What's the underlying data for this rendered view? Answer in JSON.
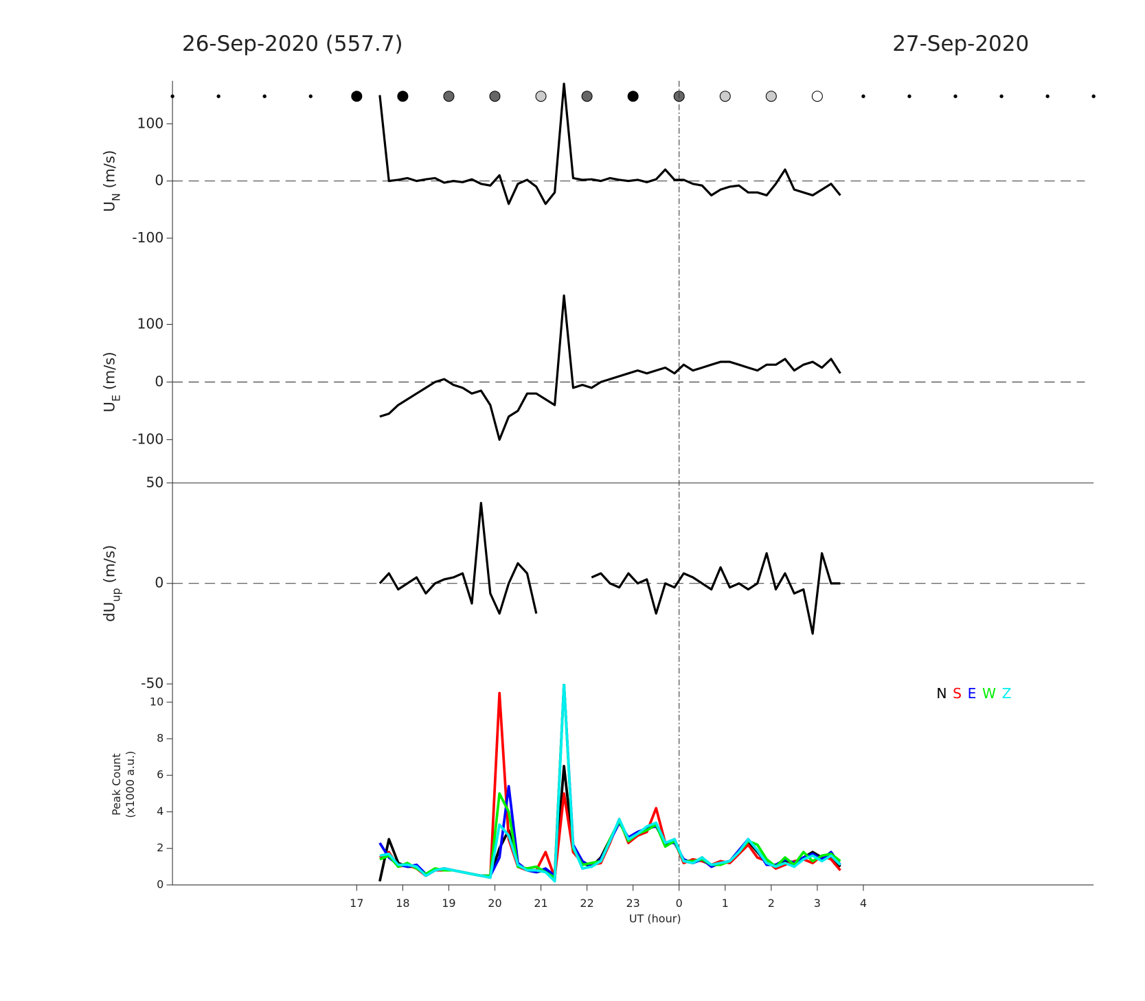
{
  "header": {
    "left_title": "26-Sep-2020 (557.7)",
    "right_title": "27-Sep-2020"
  },
  "dots": {
    "x": [
      13,
      14,
      15,
      16,
      17,
      18,
      19,
      20,
      21,
      22,
      23,
      24,
      25,
      26,
      27,
      28,
      29,
      30,
      31,
      32,
      33
    ],
    "colors": [
      "#000",
      "#000",
      "#000",
      "#000",
      "#000",
      "#000",
      "#666",
      "#666",
      "#ccc",
      "#666",
      "#000",
      "#666",
      "#ccc",
      "#ccc",
      "#fff",
      "#000",
      "#000",
      "#000",
      "#000",
      "#000",
      "#000"
    ],
    "sizes": [
      "small",
      "small",
      "small",
      "small",
      "large",
      "large",
      "large",
      "large",
      "large",
      "large",
      "large",
      "large",
      "large",
      "large",
      "large",
      "small",
      "small",
      "small",
      "small",
      "small",
      "small"
    ]
  },
  "vline": 24,
  "chart_data": [
    {
      "type": "line",
      "ylabel": {
        "main": "U",
        "sub": "N",
        "unit": " (m/s)"
      },
      "ylim": [
        -175,
        175
      ],
      "yticks": [
        -100,
        0,
        100
      ],
      "xlim": [
        13,
        33
      ],
      "zero_line": true,
      "x": [
        17.5,
        17.7,
        17.9,
        18.1,
        18.3,
        18.5,
        18.7,
        18.9,
        19.1,
        19.3,
        19.5,
        19.7,
        19.9,
        20.1,
        20.3,
        20.5,
        20.7,
        20.9,
        21.1,
        21.3,
        21.5,
        21.7,
        21.9,
        22.1,
        22.3,
        22.5,
        22.7,
        22.9,
        23.1,
        23.3,
        23.5,
        23.7,
        23.9,
        24.1,
        24.3,
        24.5,
        24.7,
        24.9,
        25.1,
        25.3,
        25.5,
        25.7,
        25.9,
        26.1,
        26.3,
        26.5,
        26.7,
        26.9,
        27.1,
        27.3,
        27.5
      ],
      "series": [
        {
          "color": "#000",
          "values": [
            150,
            0,
            2,
            5,
            0,
            3,
            5,
            -3,
            0,
            -2,
            3,
            -5,
            -8,
            10,
            -40,
            -5,
            2,
            -10,
            -40,
            -20,
            170,
            5,
            2,
            3,
            0,
            5,
            2,
            0,
            2,
            -2,
            3,
            20,
            2,
            2,
            -5,
            -8,
            -25,
            -15,
            -10,
            -8,
            -20,
            -20,
            -25,
            -5,
            20,
            -15,
            -20,
            -25,
            -15,
            -5,
            -25
          ]
        }
      ]
    },
    {
      "type": "line",
      "ylabel": {
        "main": "U",
        "sub": "E",
        "unit": " (m/s)"
      },
      "ylim": [
        -175,
        175
      ],
      "yticks": [
        -100,
        0,
        100
      ],
      "xlim": [
        13,
        33
      ],
      "zero_line": true,
      "x": [
        17.5,
        17.7,
        17.9,
        18.1,
        18.3,
        18.5,
        18.7,
        18.9,
        19.1,
        19.3,
        19.5,
        19.7,
        19.9,
        20.1,
        20.3,
        20.5,
        20.7,
        20.9,
        21.1,
        21.3,
        21.5,
        21.7,
        21.9,
        22.1,
        22.3,
        22.5,
        22.7,
        22.9,
        23.1,
        23.3,
        23.5,
        23.7,
        23.9,
        24.1,
        24.3,
        24.5,
        24.7,
        24.9,
        25.1,
        25.3,
        25.5,
        25.7,
        25.9,
        26.1,
        26.3,
        26.5,
        26.7,
        26.9,
        27.1,
        27.3,
        27.5
      ],
      "series": [
        {
          "color": "#000",
          "values": [
            -60,
            -55,
            -40,
            -30,
            -20,
            -10,
            0,
            5,
            -5,
            -10,
            -20,
            -15,
            -40,
            -100,
            -60,
            -50,
            -20,
            -20,
            -30,
            -40,
            150,
            -10,
            -5,
            -10,
            0,
            5,
            10,
            15,
            20,
            15,
            20,
            25,
            15,
            30,
            20,
            25,
            30,
            35,
            35,
            30,
            25,
            20,
            30,
            30,
            40,
            20,
            30,
            35,
            25,
            40,
            15
          ]
        }
      ]
    },
    {
      "type": "line",
      "ylabel": {
        "main": "dU",
        "sub": "up",
        "unit": " (m/s)"
      },
      "ylim": [
        -50,
        50
      ],
      "yticks": [
        -50,
        0,
        50
      ],
      "xlim": [
        13,
        33
      ],
      "zero_line": true,
      "x": [
        17.5,
        17.7,
        17.9,
        18.1,
        18.3,
        18.5,
        18.7,
        18.9,
        19.1,
        19.3,
        19.5,
        19.7,
        19.9,
        20.1,
        20.3,
        20.5,
        20.7,
        20.9,
        21.1,
        21.3,
        21.5,
        21.7,
        21.9,
        22.1,
        22.3,
        22.5,
        22.7,
        22.9,
        23.1,
        23.3,
        23.5,
        23.7,
        23.9,
        24.1,
        24.3,
        24.5,
        24.7,
        24.9,
        25.1,
        25.3,
        25.5,
        25.7,
        25.9,
        26.1,
        26.3,
        26.5,
        26.7,
        26.9,
        27.1,
        27.3,
        27.5
      ],
      "series": [
        {
          "color": "#000",
          "values": [
            0,
            5,
            -3,
            0,
            3,
            -5,
            0,
            2,
            3,
            5,
            -10,
            40,
            -5,
            -15,
            0,
            10,
            5,
            -15,
            null,
            null,
            null,
            null,
            null,
            3,
            5,
            0,
            -2,
            5,
            0,
            2,
            -15,
            0,
            -2,
            5,
            3,
            0,
            -3,
            8,
            -2,
            0,
            -3,
            0,
            15,
            -3,
            5,
            -5,
            -3,
            -25,
            15,
            0,
            0
          ]
        }
      ]
    },
    {
      "type": "line",
      "ylabel": {
        "main": "Peak Count",
        "unit": "(x1000 a.u.)"
      },
      "ylim": [
        0,
        11
      ],
      "yticks": [
        0,
        2,
        4,
        6,
        8,
        10
      ],
      "xlim": [
        13,
        33
      ],
      "xticks": [
        17,
        18,
        19,
        20,
        21,
        22,
        23,
        {
          "value": 24,
          "label": "0"
        },
        {
          "value": 25,
          "label": "1"
        },
        {
          "value": 26,
          "label": "2"
        },
        {
          "value": 27,
          "label": "3"
        },
        {
          "value": 28,
          "label": "4"
        }
      ],
      "xlabel": "UT (hour)",
      "legend": "top-right",
      "x": [
        17.5,
        17.7,
        17.9,
        18.1,
        18.3,
        18.5,
        18.7,
        18.9,
        19.1,
        19.3,
        19.5,
        19.7,
        19.9,
        20.1,
        20.3,
        20.5,
        20.7,
        20.9,
        21.1,
        21.3,
        21.5,
        21.7,
        21.9,
        22.1,
        22.3,
        22.5,
        22.7,
        22.9,
        23.1,
        23.3,
        23.5,
        23.7,
        23.9,
        24.1,
        24.3,
        24.5,
        24.7,
        24.9,
        25.1,
        25.3,
        25.5,
        25.7,
        25.9,
        26.1,
        26.3,
        26.5,
        26.7,
        26.9,
        27.1,
        27.3,
        27.5
      ],
      "series": [
        {
          "name": "N",
          "color": "#000000",
          "values": [
            0.2,
            2.5,
            1.2,
            1.0,
            1.0,
            0.5,
            0.8,
            0.9,
            0.8,
            0.7,
            0.6,
            0.5,
            0.5,
            2.0,
            3.0,
            1.0,
            0.8,
            0.7,
            0.8,
            0.3,
            6.5,
            2.0,
            1.2,
            1.0,
            1.5,
            2.5,
            3.5,
            2.5,
            2.8,
            3.0,
            3.3,
            2.2,
            2.5,
            1.3,
            1.2,
            1.5,
            1.0,
            1.2,
            1.3,
            1.8,
            2.4,
            1.8,
            1.2,
            1.0,
            1.3,
            1.0,
            1.5,
            1.8,
            1.5,
            1.5,
            1.0
          ]
        },
        {
          "name": "S",
          "color": "#ff0000",
          "values": [
            1.5,
            1.8,
            1.0,
            1.1,
            0.9,
            0.5,
            0.8,
            0.8,
            0.8,
            0.7,
            0.6,
            0.5,
            0.4,
            10.5,
            2.5,
            1.0,
            0.8,
            0.8,
            1.8,
            0.4,
            5.0,
            1.8,
            1.2,
            1.1,
            1.2,
            2.3,
            3.6,
            2.3,
            2.7,
            2.9,
            4.2,
            2.3,
            2.4,
            1.2,
            1.4,
            1.3,
            1.1,
            1.3,
            1.2,
            1.7,
            2.2,
            1.5,
            1.3,
            0.9,
            1.1,
            1.3,
            1.4,
            1.2,
            1.6,
            1.4,
            0.8
          ]
        },
        {
          "name": "E",
          "color": "#0000ff",
          "values": [
            2.3,
            1.5,
            1.1,
            1.0,
            1.1,
            0.6,
            0.8,
            0.9,
            0.8,
            0.7,
            0.6,
            0.5,
            0.5,
            1.5,
            5.4,
            1.2,
            0.8,
            0.7,
            0.9,
            0.5,
            11,
            2.2,
            1.3,
            1.0,
            1.4,
            2.4,
            3.4,
            2.6,
            2.9,
            3.1,
            3.2,
            2.3,
            2.3,
            1.4,
            1.2,
            1.4,
            1.0,
            1.2,
            1.3,
            1.9,
            2.5,
            1.9,
            1.1,
            1.1,
            1.4,
            1.2,
            1.5,
            1.7,
            1.4,
            1.8,
            1.1
          ]
        },
        {
          "name": "W",
          "color": "#00ee00",
          "values": [
            1.4,
            1.6,
            1.0,
            1.2,
            0.9,
            0.6,
            0.9,
            0.8,
            0.8,
            0.7,
            0.6,
            0.5,
            0.5,
            5.0,
            4.0,
            1.0,
            0.9,
            1.0,
            0.7,
            0.4,
            11,
            2.0,
            1.1,
            1.2,
            1.3,
            2.5,
            3.5,
            2.4,
            2.8,
            3.0,
            3.3,
            2.1,
            2.4,
            1.3,
            1.3,
            1.4,
            1.1,
            1.1,
            1.3,
            1.8,
            2.4,
            2.2,
            1.4,
            1.0,
            1.5,
            1.1,
            1.8,
            1.3,
            1.6,
            1.7,
            1.3
          ]
        },
        {
          "name": "Z",
          "color": "#00eeee",
          "values": [
            1.6,
            1.7,
            1.1,
            1.1,
            1.0,
            0.5,
            0.8,
            0.9,
            0.8,
            0.7,
            0.6,
            0.5,
            0.4,
            3.3,
            2.7,
            1.1,
            0.8,
            0.8,
            0.7,
            0.2,
            11,
            2.1,
            0.9,
            1.0,
            1.3,
            2.4,
            3.6,
            2.5,
            2.8,
            3.2,
            3.4,
            2.3,
            2.5,
            1.3,
            1.2,
            1.5,
            1.1,
            1.2,
            1.3,
            1.8,
            2.5,
            1.9,
            1.2,
            1.0,
            1.2,
            1.0,
            1.4,
            1.6,
            1.3,
            1.6,
            1.1
          ]
        }
      ]
    }
  ]
}
